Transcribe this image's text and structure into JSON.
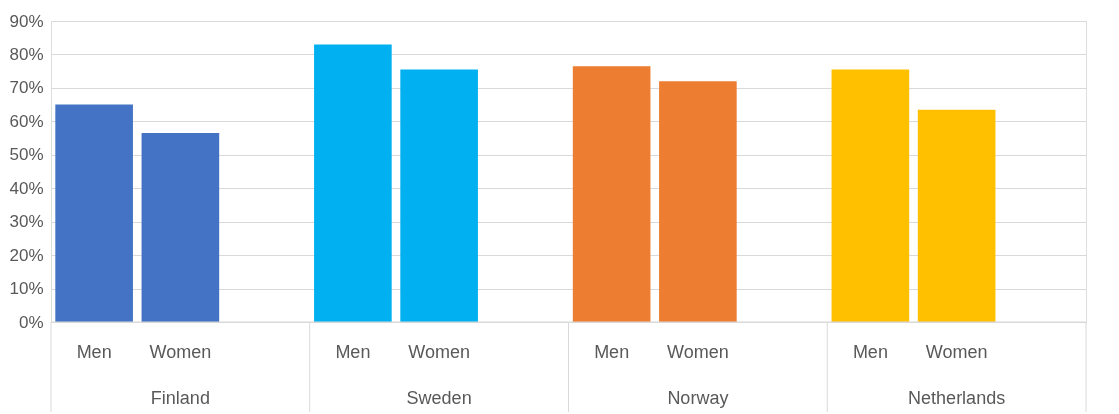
{
  "chart_data": {
    "type": "bar",
    "categories": [
      "Men",
      "Women",
      "Men",
      "Women",
      "Men",
      "Women",
      "Men",
      "Women"
    ],
    "series": [
      {
        "color": "#4472c4",
        "values": [
          65,
          56.5,
          null,
          null,
          null,
          null,
          null,
          null
        ]
      },
      {
        "color": "#00b0f0",
        "values": [
          null,
          null,
          83,
          75.5,
          null,
          null,
          null,
          null
        ]
      },
      {
        "color": "#ed7d31",
        "values": [
          null,
          null,
          null,
          null,
          76.5,
          72,
          null,
          null
        ]
      },
      {
        "color": "#ffc000",
        "values": [
          null,
          null,
          null,
          null,
          null,
          null,
          75.5,
          63.5
        ]
      }
    ],
    "ylim": [
      0,
      90
    ],
    "yticks": [
      {
        "value": 0,
        "label": "0%"
      },
      {
        "value": 10,
        "label": "10%"
      },
      {
        "value": 20,
        "label": "20%"
      },
      {
        "value": 30,
        "label": "30%"
      },
      {
        "value": 40,
        "label": "40%"
      },
      {
        "value": 50,
        "label": "50%"
      },
      {
        "value": 60,
        "label": "60%"
      },
      {
        "value": 70,
        "label": "70%"
      },
      {
        "value": 80,
        "label": "80%"
      },
      {
        "value": 90,
        "label": "90%"
      }
    ],
    "grid": "y",
    "annotations": [
      "Finland",
      "Sweden",
      "Norway",
      "Netherlands"
    ]
  }
}
